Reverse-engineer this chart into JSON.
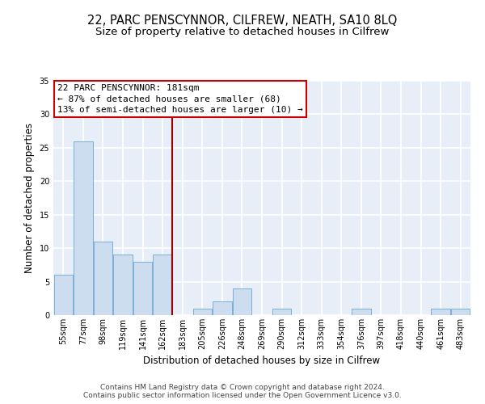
{
  "title": "22, PARC PENSCYNNOR, CILFREW, NEATH, SA10 8LQ",
  "subtitle": "Size of property relative to detached houses in Cilfrew",
  "xlabel": "Distribution of detached houses by size in Cilfrew",
  "ylabel": "Number of detached properties",
  "categories": [
    "55sqm",
    "77sqm",
    "98sqm",
    "119sqm",
    "141sqm",
    "162sqm",
    "183sqm",
    "205sqm",
    "226sqm",
    "248sqm",
    "269sqm",
    "290sqm",
    "312sqm",
    "333sqm",
    "354sqm",
    "376sqm",
    "397sqm",
    "418sqm",
    "440sqm",
    "461sqm",
    "483sqm"
  ],
  "bar_heights": [
    6,
    26,
    11,
    9,
    8,
    9,
    0,
    1,
    2,
    4,
    0,
    1,
    0,
    0,
    0,
    1,
    0,
    0,
    0,
    1,
    1
  ],
  "bar_color": "#ccddf0",
  "bar_edge_color": "#7aafd4",
  "vline_x_index": 6,
  "vline_color": "#990000",
  "ylim": [
    0,
    35
  ],
  "yticks": [
    0,
    5,
    10,
    15,
    20,
    25,
    30,
    35
  ],
  "annotation_title": "22 PARC PENSCYNNOR: 181sqm",
  "annotation_line1": "← 87% of detached houses are smaller (68)",
  "annotation_line2": "13% of semi-detached houses are larger (10) →",
  "annotation_box_color": "#ffffff",
  "annotation_box_edge": "#cc0000",
  "footer_line1": "Contains HM Land Registry data © Crown copyright and database right 2024.",
  "footer_line2": "Contains public sector information licensed under the Open Government Licence v3.0.",
  "background_color": "#e8eef8",
  "grid_color": "#ffffff",
  "title_fontsize": 10.5,
  "subtitle_fontsize": 9.5,
  "axis_label_fontsize": 8.5,
  "tick_fontsize": 7,
  "annotation_fontsize": 8,
  "footer_fontsize": 6.5
}
